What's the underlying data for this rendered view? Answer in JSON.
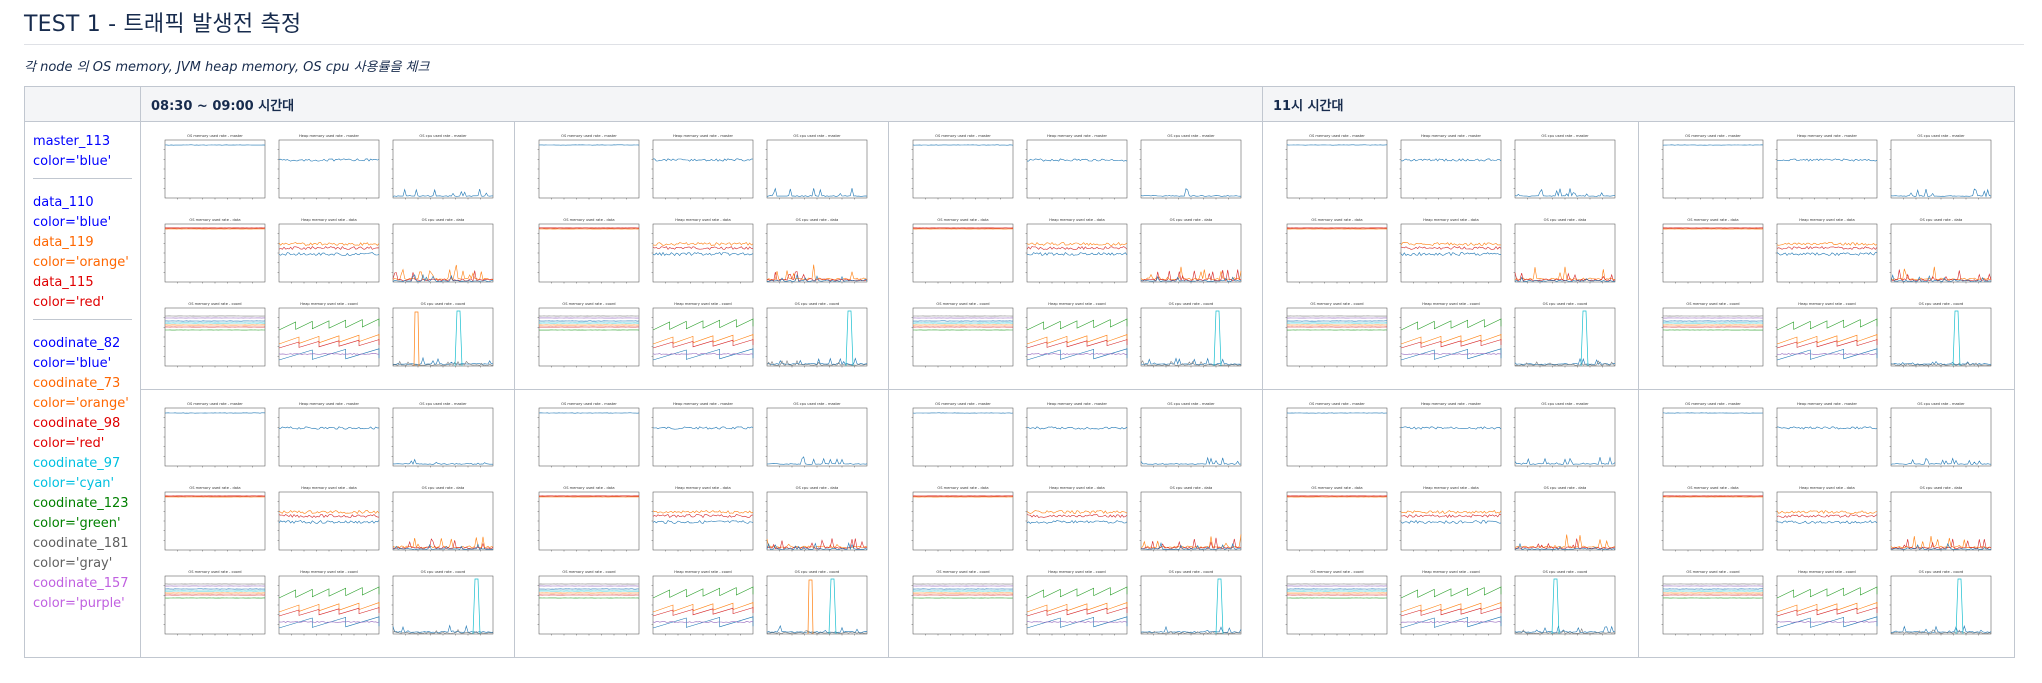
{
  "page": {
    "title": "TEST 1 - 트래픽 발생전 측정",
    "subtitle": "각 node 의 OS memory, JVM heap memory, OS cpu 사용률을 체크"
  },
  "table": {
    "header_0830": "08:30 ~ 09:00 시간대",
    "header_11": "11시 시간대"
  },
  "legend": {
    "groups": [
      [
        {
          "text": "master_113",
          "color": "#0000ff"
        },
        {
          "text": "color='blue'",
          "color": "#0000ff"
        }
      ],
      [
        {
          "text": "data_110",
          "color": "#0000ff"
        },
        {
          "text": "color='blue'",
          "color": "#0000ff"
        },
        {
          "text": "data_119",
          "color": "#ff6600"
        },
        {
          "text": "color='orange'",
          "color": "#ff6600"
        },
        {
          "text": "data_115",
          "color": "#e00000"
        },
        {
          "text": "color='red'",
          "color": "#e00000"
        }
      ],
      [
        {
          "text": "coodinate_82",
          "color": "#0000ff"
        },
        {
          "text": "color='blue'",
          "color": "#0000ff"
        },
        {
          "text": "coodinate_73",
          "color": "#ff6600"
        },
        {
          "text": "color='orange'",
          "color": "#ff6600"
        },
        {
          "text": "coodinate_98",
          "color": "#e00000"
        },
        {
          "text": "color='red'",
          "color": "#e00000"
        },
        {
          "text": "coodinate_97",
          "color": "#00c0e0"
        },
        {
          "text": "color='cyan'",
          "color": "#00c0e0"
        },
        {
          "text": "coodinate_123",
          "color": "#008000"
        },
        {
          "text": "color='green'",
          "color": "#008000"
        },
        {
          "text": "coodinate_181",
          "color": "#606060"
        },
        {
          "text": "color='gray'",
          "color": "#606060"
        },
        {
          "text": "coodinate_157",
          "color": "#c060e0"
        },
        {
          "text": "color='purple'",
          "color": "#c060e0"
        }
      ]
    ]
  },
  "figure_panels": [
    [
      "OS memory used rate - master",
      "Heap memory used rate - master",
      "OS cpu used rate - master"
    ],
    [
      "OS memory used rate - data",
      "Heap memory used rate - data",
      "OS cpu used rate - data"
    ],
    [
      "OS memory used rate - coord",
      "Heap memory used rate - coord",
      "OS cpu used rate - coord"
    ]
  ],
  "colors": {
    "blue": "#1f77b4",
    "orange": "#ff7f0e",
    "red": "#d62728",
    "cyan": "#17becf",
    "green": "#2ca02c",
    "gray": "#7f7f7f",
    "purple": "#9467bd"
  }
}
